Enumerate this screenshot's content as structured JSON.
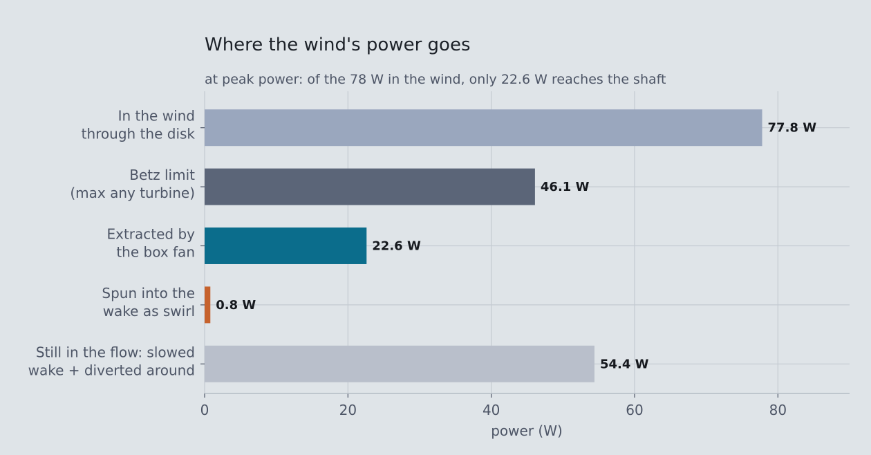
{
  "chart_data": {
    "type": "bar",
    "orientation": "horizontal",
    "title": "Where the wind's power goes",
    "subtitle": "at peak power: of the 78 W in the wind, only 22.6 W reaches the shaft",
    "xlabel": "power (W)",
    "ylabel": "",
    "xlim": [
      0,
      90
    ],
    "xticks": [
      0,
      20,
      40,
      60,
      80
    ],
    "grid": true,
    "categories": [
      [
        "In the wind",
        "through the disk"
      ],
      [
        "Betz limit",
        "(max any turbine)"
      ],
      [
        "Extracted by",
        "the box fan"
      ],
      [
        "Spun into the",
        "wake as swirl"
      ],
      [
        "Still in the flow: slowed",
        "wake + diverted around"
      ]
    ],
    "values": [
      77.8,
      46.1,
      22.6,
      0.8,
      54.4
    ],
    "value_labels": [
      "77.8 W",
      "46.1 W",
      "22.6 W",
      "0.8 W",
      "54.4 W"
    ],
    "colors": [
      "#9aa7be",
      "#5b6578",
      "#0b6d8c",
      "#c6622d",
      "#b9bfcb"
    ]
  }
}
